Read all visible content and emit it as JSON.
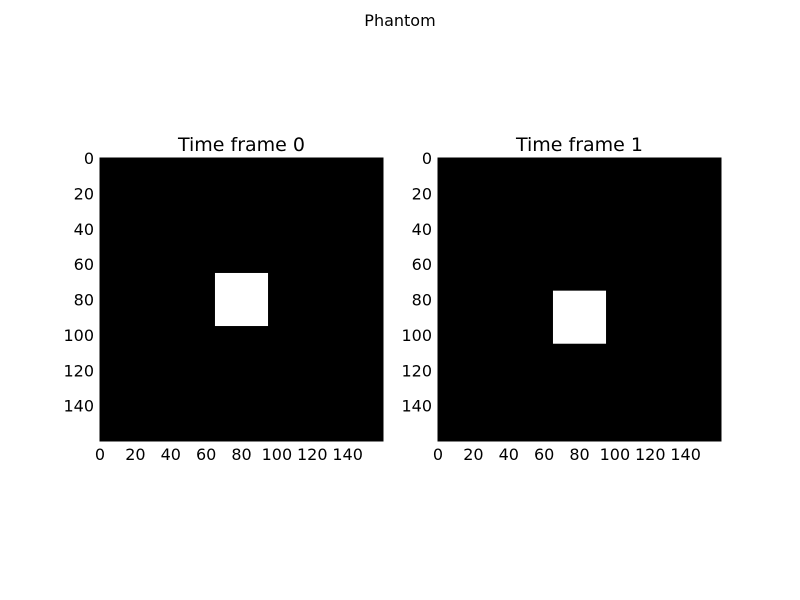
{
  "figure": {
    "suptitle": "Phantom"
  },
  "chart_data": [
    {
      "type": "heatmap",
      "title": "Time frame 0",
      "colormap": "gray",
      "background_value": 0,
      "image_size": [
        160,
        160
      ],
      "xlim": [
        0,
        160
      ],
      "ylim": [
        160,
        0
      ],
      "xticks": [
        0,
        20,
        40,
        60,
        80,
        100,
        120,
        140
      ],
      "yticks": [
        0,
        20,
        40,
        60,
        80,
        100,
        120,
        140
      ],
      "shapes": [
        {
          "name": "square",
          "value": 1,
          "x": [
            65,
            95
          ],
          "y": [
            65,
            95
          ]
        }
      ],
      "colors": {
        "low": "#000000",
        "high": "#ffffff"
      }
    },
    {
      "type": "heatmap",
      "title": "Time frame 1",
      "colormap": "gray",
      "background_value": 0,
      "image_size": [
        160,
        160
      ],
      "xlim": [
        0,
        160
      ],
      "ylim": [
        160,
        0
      ],
      "xticks": [
        0,
        20,
        40,
        60,
        80,
        100,
        120,
        140
      ],
      "yticks": [
        0,
        20,
        40,
        60,
        80,
        100,
        120,
        140
      ],
      "shapes": [
        {
          "name": "square",
          "value": 1,
          "x": [
            65,
            95
          ],
          "y": [
            75,
            105
          ]
        }
      ],
      "colors": {
        "low": "#000000",
        "high": "#ffffff"
      }
    }
  ]
}
